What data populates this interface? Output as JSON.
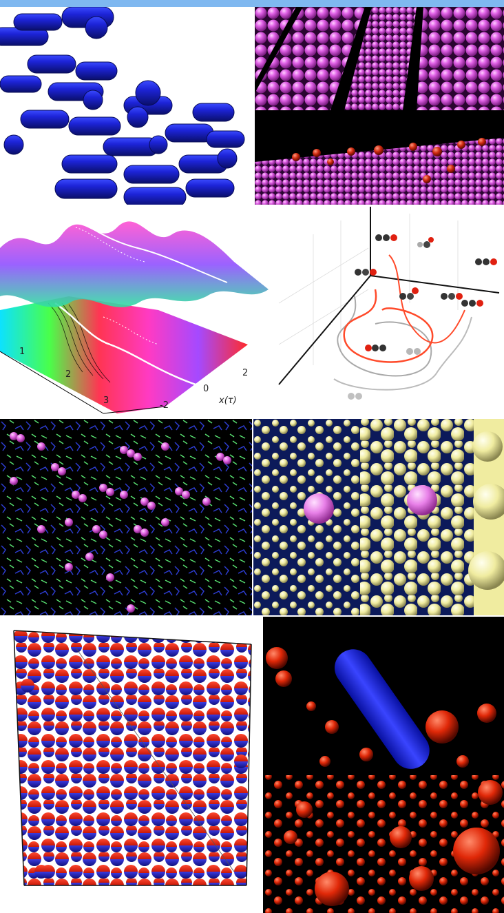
{
  "surface_panel": {
    "tick_labels_left": [
      "1",
      "2",
      "3"
    ],
    "tick_labels_bottom": [
      "-2",
      "0",
      "2"
    ],
    "axis_label": "x(τ)"
  }
}
